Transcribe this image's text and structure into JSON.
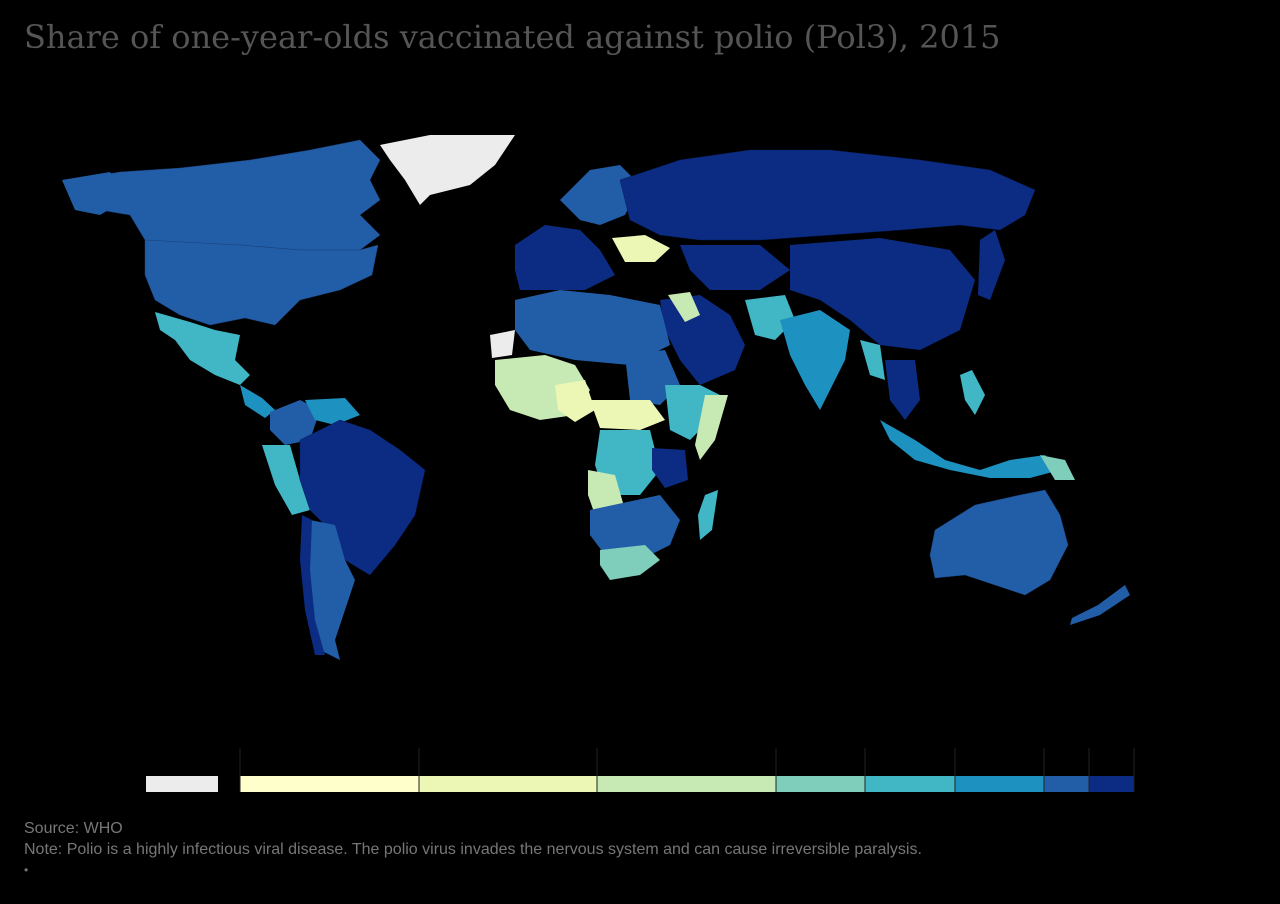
{
  "title": "Share of one-year-olds vaccinated against polio (Pol3), 2015",
  "footer": {
    "source": "Source: WHO",
    "note": "Note: Polio is a highly infectious viral disease. The polio virus invades the nervous system and can cause irreversible paralysis.",
    "bullet": "•"
  },
  "colors": {
    "background": "#000000",
    "no_data": "#ececec",
    "scale": [
      "#ffffcc",
      "#ecf6b5",
      "#c7e9b4",
      "#7fcdbb",
      "#41b6c4",
      "#1d91c0",
      "#225ea8",
      "#0c2c84"
    ]
  },
  "legend": {
    "no_data_color": "#ececec",
    "bins": [
      "#ffffcc",
      "#ecf6b5",
      "#c7e9b4",
      "#7fcdbb",
      "#41b6c4",
      "#1d91c0",
      "#225ea8",
      "#0c2c84"
    ]
  }
}
